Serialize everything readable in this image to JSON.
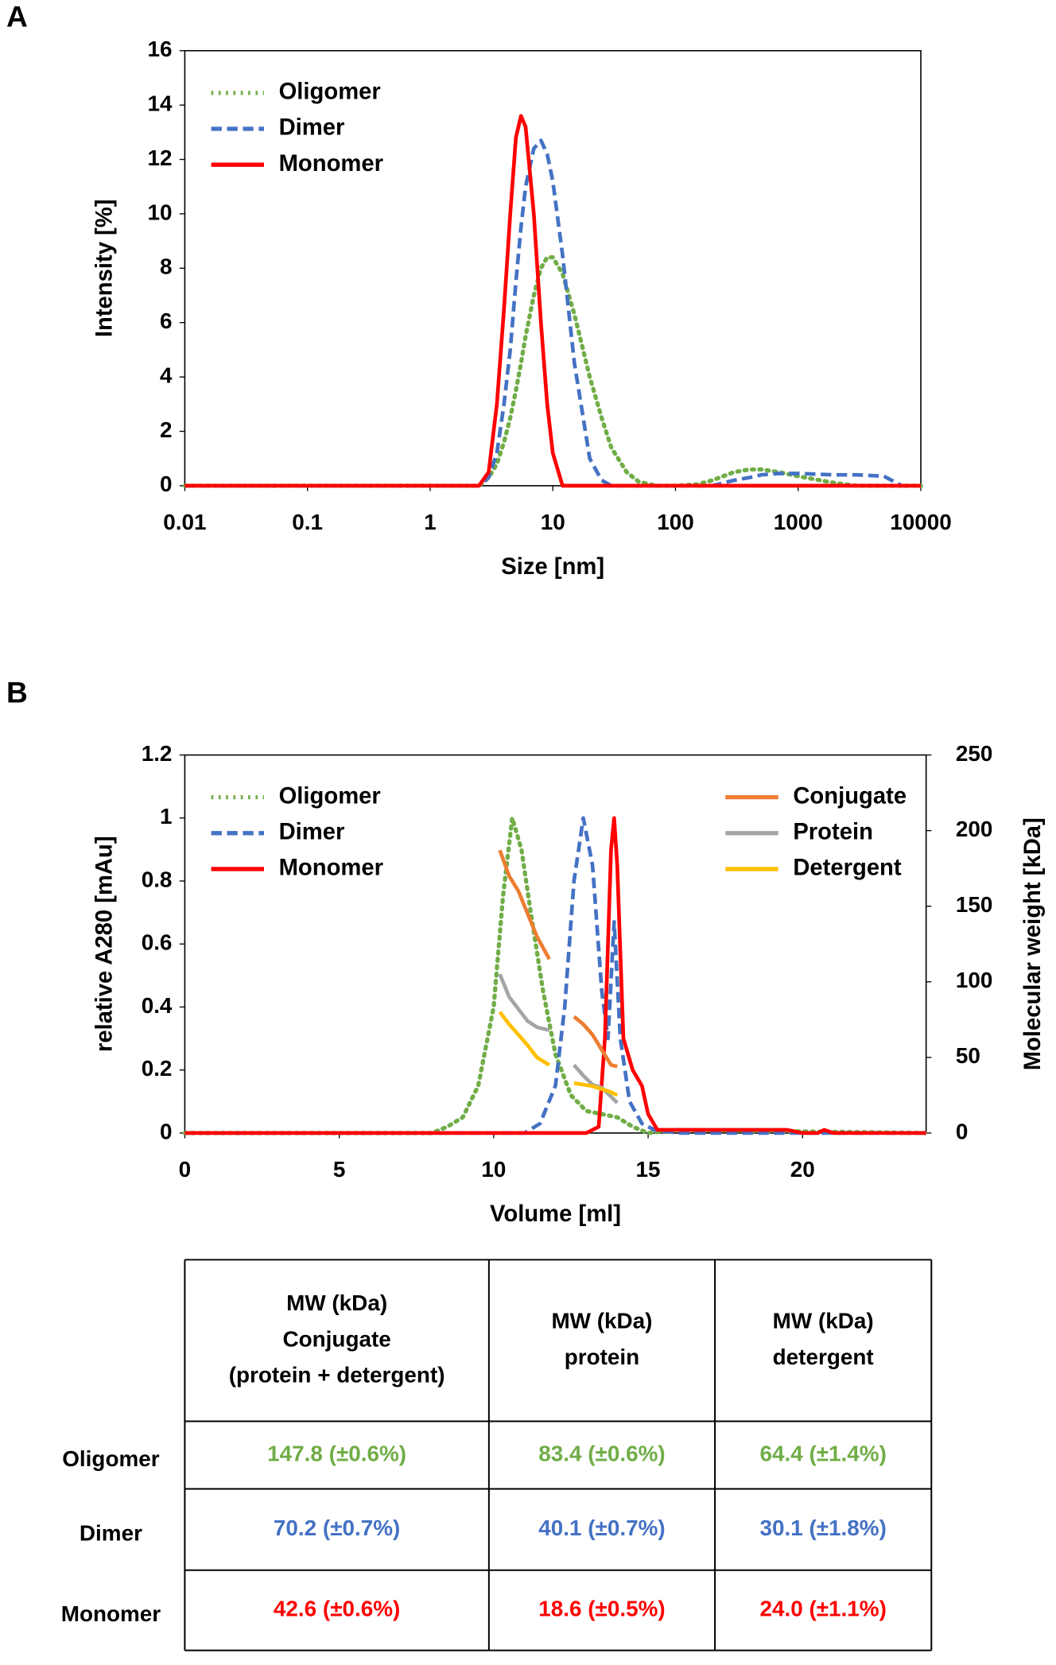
{
  "panels": [
    "A",
    "B"
  ],
  "chart_data": [
    {
      "type": "line",
      "xlabel": "Size [nm]",
      "ylabel": "Intensity [%]",
      "xscale": "log",
      "xlim": [
        0.01,
        10000
      ],
      "xticks": [
        0.01,
        0.1,
        1,
        10,
        100,
        1000,
        10000
      ],
      "ylim": [
        0,
        16
      ],
      "yticks": [
        0,
        2,
        4,
        6,
        8,
        10,
        12,
        14,
        16
      ],
      "legend": "upper left",
      "x": [
        0.01,
        0.1,
        1,
        2.5,
        3,
        3.5,
        4,
        4.5,
        5,
        5.5,
        6,
        7,
        8,
        9,
        10,
        12,
        15,
        20,
        25,
        30,
        40,
        50,
        70,
        100,
        150,
        200,
        300,
        400,
        500,
        700,
        1000,
        2000,
        3000,
        5000,
        7000,
        10000
      ],
      "series": [
        {
          "name": "Oligomer",
          "color": "#70ad47",
          "style": "dotted",
          "values": [
            0,
            0,
            0,
            0,
            0.3,
            0.8,
            1.6,
            2.5,
            3.5,
            4.5,
            5.5,
            7,
            8,
            8.4,
            8.4,
            7.8,
            6.3,
            4,
            2.5,
            1.4,
            0.5,
            0.15,
            0,
            0,
            0.05,
            0.2,
            0.5,
            0.6,
            0.6,
            0.5,
            0.35,
            0.1,
            0,
            0,
            0,
            0
          ]
        },
        {
          "name": "Dimer",
          "color": "#4472c4",
          "style": "dashed",
          "values": [
            0,
            0,
            0,
            0,
            0.3,
            1.2,
            3,
            5,
            7.5,
            9.5,
            11,
            12.4,
            12.7,
            12.2,
            11.2,
            8.5,
            4.5,
            1,
            0.2,
            0,
            0,
            0,
            0,
            0,
            0,
            0,
            0.2,
            0.3,
            0.4,
            0.45,
            0.45,
            0.4,
            0.4,
            0.35,
            0,
            0
          ]
        },
        {
          "name": "Monomer",
          "color": "#ff0000",
          "style": "solid",
          "values": [
            0,
            0,
            0,
            0,
            0.5,
            3,
            6.5,
            10,
            12.8,
            13.6,
            13.2,
            10,
            6,
            3,
            1.2,
            0,
            0,
            0,
            0,
            0,
            0,
            0,
            0,
            0,
            0,
            0,
            0,
            0,
            0,
            0,
            0,
            0,
            0,
            0,
            0,
            0
          ]
        }
      ]
    },
    {
      "type": "line",
      "xlabel": "Volume [ml]",
      "ylabel": "relative A280 [mAu]",
      "y2label": "Molecular weight [kDa]",
      "xlim": [
        0,
        24
      ],
      "xticks": [
        0,
        5,
        10,
        15,
        20
      ],
      "ylim": [
        0,
        1.2
      ],
      "yticks": [
        0,
        0.2,
        0.4,
        0.6,
        0.8,
        1,
        1.2
      ],
      "y2lim": [
        0,
        250
      ],
      "y2ticks": [
        0,
        50,
        100,
        150,
        200,
        250
      ],
      "legend": "upper left",
      "legend2": "upper right",
      "series": [
        {
          "name": "Oligomer",
          "color": "#70ad47",
          "style": "dotted",
          "x": [
            0,
            8,
            8.5,
            9,
            9.5,
            10,
            10.3,
            10.6,
            10.9,
            11.2,
            11.6,
            12,
            12.5,
            13,
            13.5,
            14,
            14.5,
            15,
            16,
            24
          ],
          "values": [
            0,
            0,
            0.02,
            0.05,
            0.15,
            0.4,
            0.75,
            1.0,
            0.9,
            0.7,
            0.45,
            0.25,
            0.12,
            0.07,
            0.06,
            0.05,
            0.02,
            0,
            0.01,
            0
          ]
        },
        {
          "name": "Dimer",
          "color": "#4472c4",
          "style": "dashed",
          "x": [
            0,
            11,
            11.5,
            12,
            12.3,
            12.6,
            12.9,
            13.2,
            13.5,
            13.7,
            13.9,
            14.1,
            14.4,
            14.8,
            15.2,
            16,
            24
          ],
          "values": [
            0,
            0,
            0.03,
            0.15,
            0.4,
            0.8,
            1.0,
            0.85,
            0.45,
            0.3,
            0.67,
            0.3,
            0.1,
            0.03,
            0.01,
            0,
            0
          ]
        },
        {
          "name": "Monomer",
          "color": "#ff0000",
          "style": "solid",
          "x": [
            0,
            13,
            13.4,
            13.6,
            13.8,
            13.9,
            14,
            14.2,
            14.5,
            14.8,
            15,
            15.3,
            16,
            19.5,
            20,
            20.5,
            20.7,
            21,
            24
          ],
          "values": [
            0,
            0,
            0.02,
            0.3,
            0.9,
            1.0,
            0.85,
            0.3,
            0.2,
            0.15,
            0.06,
            0.01,
            0.01,
            0.01,
            0,
            0,
            0.01,
            0,
            0
          ]
        },
        {
          "name": "Conjugate",
          "color": "#ed7d31",
          "style": "solid",
          "axis": "y2",
          "x": [
            10.2,
            10.5,
            10.8,
            11.1,
            11.4,
            11.8,
            null,
            12.6,
            12.9,
            13.2,
            13.5,
            13.8,
            14
          ],
          "values": [
            187,
            170,
            160,
            145,
            130,
            115,
            null,
            77,
            72,
            65,
            55,
            45,
            44
          ]
        },
        {
          "name": "Protein",
          "color": "#a5a5a5",
          "style": "solid",
          "axis": "y2",
          "x": [
            10.2,
            10.5,
            10.8,
            11.1,
            11.4,
            11.8,
            null,
            12.6,
            12.9,
            13.2,
            13.5,
            13.8,
            14
          ],
          "values": [
            105,
            90,
            82,
            74,
            70,
            68,
            null,
            45,
            38,
            32,
            30,
            24,
            20
          ]
        },
        {
          "name": "Detergent",
          "color": "#ffc000",
          "style": "solid",
          "axis": "y2",
          "x": [
            10.2,
            10.5,
            10.8,
            11.1,
            11.4,
            11.8,
            null,
            12.6,
            12.9,
            13.2,
            13.5,
            13.8,
            14
          ],
          "values": [
            80,
            72,
            65,
            58,
            50,
            45,
            null,
            33,
            32,
            31,
            29,
            27,
            25
          ]
        }
      ]
    }
  ],
  "table": {
    "headers": [
      [
        "MW (kDa)",
        "Conjugate",
        "(protein + detergent)"
      ],
      [
        "MW (kDa)",
        "protein"
      ],
      [
        "MW (kDa)",
        "detergent"
      ]
    ],
    "rows": [
      {
        "label": "Oligomer",
        "color": "#70ad47",
        "cells": [
          "147.8 (±0.6%)",
          "83.4 (±0.6%)",
          "64.4 (±1.4%)"
        ]
      },
      {
        "label": "Dimer",
        "color": "#4472c4",
        "cells": [
          "70.2 (±0.7%)",
          "40.1 (±0.7%)",
          "30.1 (±1.8%)"
        ]
      },
      {
        "label": "Monomer",
        "color": "#ff0000",
        "cells": [
          "42.6 (±0.6%)",
          "18.6 (±0.5%)",
          "24.0 (±1.1%)"
        ]
      }
    ]
  }
}
